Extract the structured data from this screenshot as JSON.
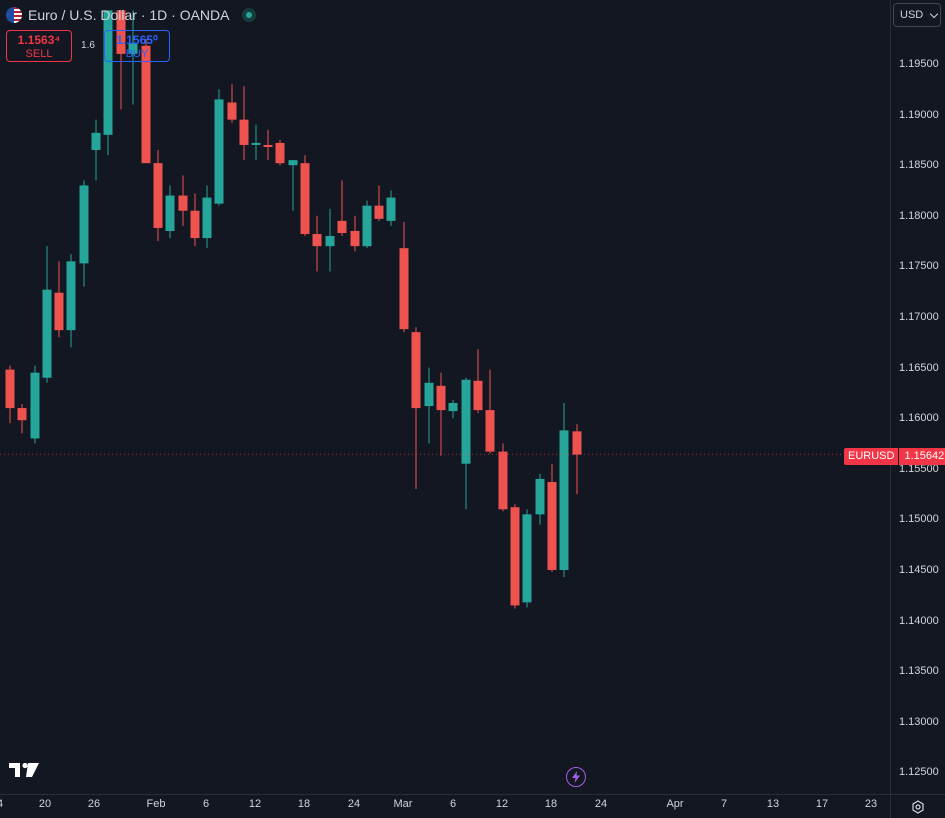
{
  "header": {
    "title": "Euro / U.S. Dollar · 1D · OANDA",
    "flag_icon": "eur-usd-flag-icon",
    "status_icon": "market-open-dot-icon"
  },
  "trade": {
    "sell_price": "1.1563⁴",
    "sell_label": "SELL",
    "spread": "1.6",
    "buy_price": "1.1565⁰",
    "buy_label": "BUY"
  },
  "currency_selector": {
    "label": "USD",
    "icon": "chevron-down-icon"
  },
  "last_price": {
    "symbol": "EURUSD",
    "value": "1.15642"
  },
  "colors": {
    "background": "#131722",
    "up": "#26a69a",
    "down": "#ef5350",
    "text": "#d1d4dc"
  },
  "chart_data": {
    "type": "candlestick",
    "title": "Euro / U.S. Dollar · 1D · OANDA",
    "y_ticks": [
      "1.19500",
      "1.19000",
      "1.18500",
      "1.18000",
      "1.17500",
      "1.17000",
      "1.16500",
      "1.16000",
      "1.15500",
      "1.15000",
      "1.14500",
      "1.14000",
      "1.13500",
      "1.13000",
      "1.12500"
    ],
    "x_ticks": [
      "4",
      "20",
      "26",
      "Feb",
      "6",
      "12",
      "18",
      "24",
      "Mar",
      "6",
      "12",
      "18",
      "24",
      "Apr",
      "7",
      "13",
      "17",
      "23"
    ],
    "ylim": [
      1.1221,
      1.2003
    ],
    "grid": false,
    "candles": [
      {
        "date": "Jan 15",
        "o": 1.1648,
        "h": 1.1652,
        "l": 1.1595,
        "c": 1.161
      },
      {
        "date": "Jan 16",
        "o": 1.161,
        "h": 1.1614,
        "l": 1.1585,
        "c": 1.1598
      },
      {
        "date": "Jan 19",
        "o": 1.158,
        "h": 1.1652,
        "l": 1.1575,
        "c": 1.1645
      },
      {
        "date": "Jan 20",
        "o": 1.164,
        "h": 1.177,
        "l": 1.1635,
        "c": 1.1727
      },
      {
        "date": "Jan 21",
        "o": 1.1724,
        "h": 1.1755,
        "l": 1.168,
        "c": 1.1687
      },
      {
        "date": "Jan 22",
        "o": 1.1687,
        "h": 1.1762,
        "l": 1.167,
        "c": 1.1755
      },
      {
        "date": "Jan 23",
        "o": 1.1753,
        "h": 1.1835,
        "l": 1.173,
        "c": 1.183
      },
      {
        "date": "Jan 26",
        "o": 1.1865,
        "h": 1.1895,
        "l": 1.1835,
        "c": 1.1882
      },
      {
        "date": "Jan 27",
        "o": 1.188,
        "h": 1.2003,
        "l": 1.186,
        "c": 1.2003
      },
      {
        "date": "Jan 28",
        "o": 1.2003,
        "h": 1.2003,
        "l": 1.1905,
        "c": 1.196
      },
      {
        "date": "Jan 29",
        "o": 1.196,
        "h": 1.2003,
        "l": 1.191,
        "c": 1.197
      },
      {
        "date": "Jan 30",
        "o": 1.1968,
        "h": 1.1975,
        "l": 1.1855,
        "c": 1.1852
      },
      {
        "date": "Feb 2",
        "o": 1.1852,
        "h": 1.1865,
        "l": 1.1775,
        "c": 1.1788
      },
      {
        "date": "Feb 3",
        "o": 1.1785,
        "h": 1.183,
        "l": 1.1778,
        "c": 1.182
      },
      {
        "date": "Feb 4",
        "o": 1.182,
        "h": 1.184,
        "l": 1.179,
        "c": 1.1805
      },
      {
        "date": "Feb 5",
        "o": 1.1805,
        "h": 1.1822,
        "l": 1.177,
        "c": 1.1778
      },
      {
        "date": "Feb 6",
        "o": 1.1778,
        "h": 1.183,
        "l": 1.1768,
        "c": 1.1818
      },
      {
        "date": "Feb 9",
        "o": 1.1812,
        "h": 1.1925,
        "l": 1.181,
        "c": 1.1915
      },
      {
        "date": "Feb 10",
        "o": 1.1912,
        "h": 1.193,
        "l": 1.1892,
        "c": 1.1895
      },
      {
        "date": "Feb 11",
        "o": 1.1895,
        "h": 1.1928,
        "l": 1.1855,
        "c": 1.187
      },
      {
        "date": "Feb 12",
        "o": 1.187,
        "h": 1.189,
        "l": 1.1855,
        "c": 1.1872
      },
      {
        "date": "Feb 13",
        "o": 1.187,
        "h": 1.1885,
        "l": 1.1855,
        "c": 1.1868
      },
      {
        "date": "Feb 16",
        "o": 1.1872,
        "h": 1.1875,
        "l": 1.185,
        "c": 1.1852
      },
      {
        "date": "Feb 17",
        "o": 1.185,
        "h": 1.1855,
        "l": 1.1805,
        "c": 1.1855
      },
      {
        "date": "Feb 18",
        "o": 1.1852,
        "h": 1.186,
        "l": 1.178,
        "c": 1.1782
      },
      {
        "date": "Feb 19",
        "o": 1.1782,
        "h": 1.18,
        "l": 1.1745,
        "c": 1.177
      },
      {
        "date": "Feb 20",
        "o": 1.177,
        "h": 1.1807,
        "l": 1.1745,
        "c": 1.178
      },
      {
        "date": "Feb 23",
        "o": 1.1795,
        "h": 1.1835,
        "l": 1.178,
        "c": 1.1783
      },
      {
        "date": "Feb 24",
        "o": 1.1785,
        "h": 1.18,
        "l": 1.1765,
        "c": 1.177
      },
      {
        "date": "Feb 25",
        "o": 1.177,
        "h": 1.1815,
        "l": 1.1768,
        "c": 1.181
      },
      {
        "date": "Feb 26",
        "o": 1.181,
        "h": 1.183,
        "l": 1.1795,
        "c": 1.1797
      },
      {
        "date": "Feb 27",
        "o": 1.1795,
        "h": 1.1825,
        "l": 1.179,
        "c": 1.1818
      },
      {
        "date": "Mar 2",
        "o": 1.1768,
        "h": 1.1794,
        "l": 1.1685,
        "c": 1.1688
      },
      {
        "date": "Mar 3",
        "o": 1.1685,
        "h": 1.169,
        "l": 1.153,
        "c": 1.161
      },
      {
        "date": "Mar 4",
        "o": 1.1612,
        "h": 1.165,
        "l": 1.1575,
        "c": 1.1635
      },
      {
        "date": "Mar 5",
        "o": 1.1632,
        "h": 1.1645,
        "l": 1.1563,
        "c": 1.1608
      },
      {
        "date": "Mar 6",
        "o": 1.1607,
        "h": 1.1618,
        "l": 1.16,
        "c": 1.1615
      },
      {
        "date": "Mar 9",
        "o": 1.1555,
        "h": 1.164,
        "l": 1.151,
        "c": 1.1638
      },
      {
        "date": "Mar 10",
        "o": 1.1637,
        "h": 1.1668,
        "l": 1.1605,
        "c": 1.1608
      },
      {
        "date": "Mar 11",
        "o": 1.1608,
        "h": 1.1648,
        "l": 1.1565,
        "c": 1.1567
      },
      {
        "date": "Mar 12",
        "o": 1.1567,
        "h": 1.1575,
        "l": 1.1508,
        "c": 1.151
      },
      {
        "date": "Mar 13",
        "o": 1.1512,
        "h": 1.1515,
        "l": 1.1412,
        "c": 1.1415
      },
      {
        "date": "Mar 16",
        "o": 1.1418,
        "h": 1.151,
        "l": 1.1413,
        "c": 1.1505
      },
      {
        "date": "Mar 17",
        "o": 1.1505,
        "h": 1.1545,
        "l": 1.1495,
        "c": 1.154
      },
      {
        "date": "Mar 18",
        "o": 1.1537,
        "h": 1.1555,
        "l": 1.1448,
        "c": 1.145
      },
      {
        "date": "Mar 19",
        "o": 1.145,
        "h": 1.1615,
        "l": 1.1443,
        "c": 1.1588
      },
      {
        "date": "Mar 20",
        "o": 1.1587,
        "h": 1.1594,
        "l": 1.1525,
        "c": 1.1564
      }
    ]
  }
}
